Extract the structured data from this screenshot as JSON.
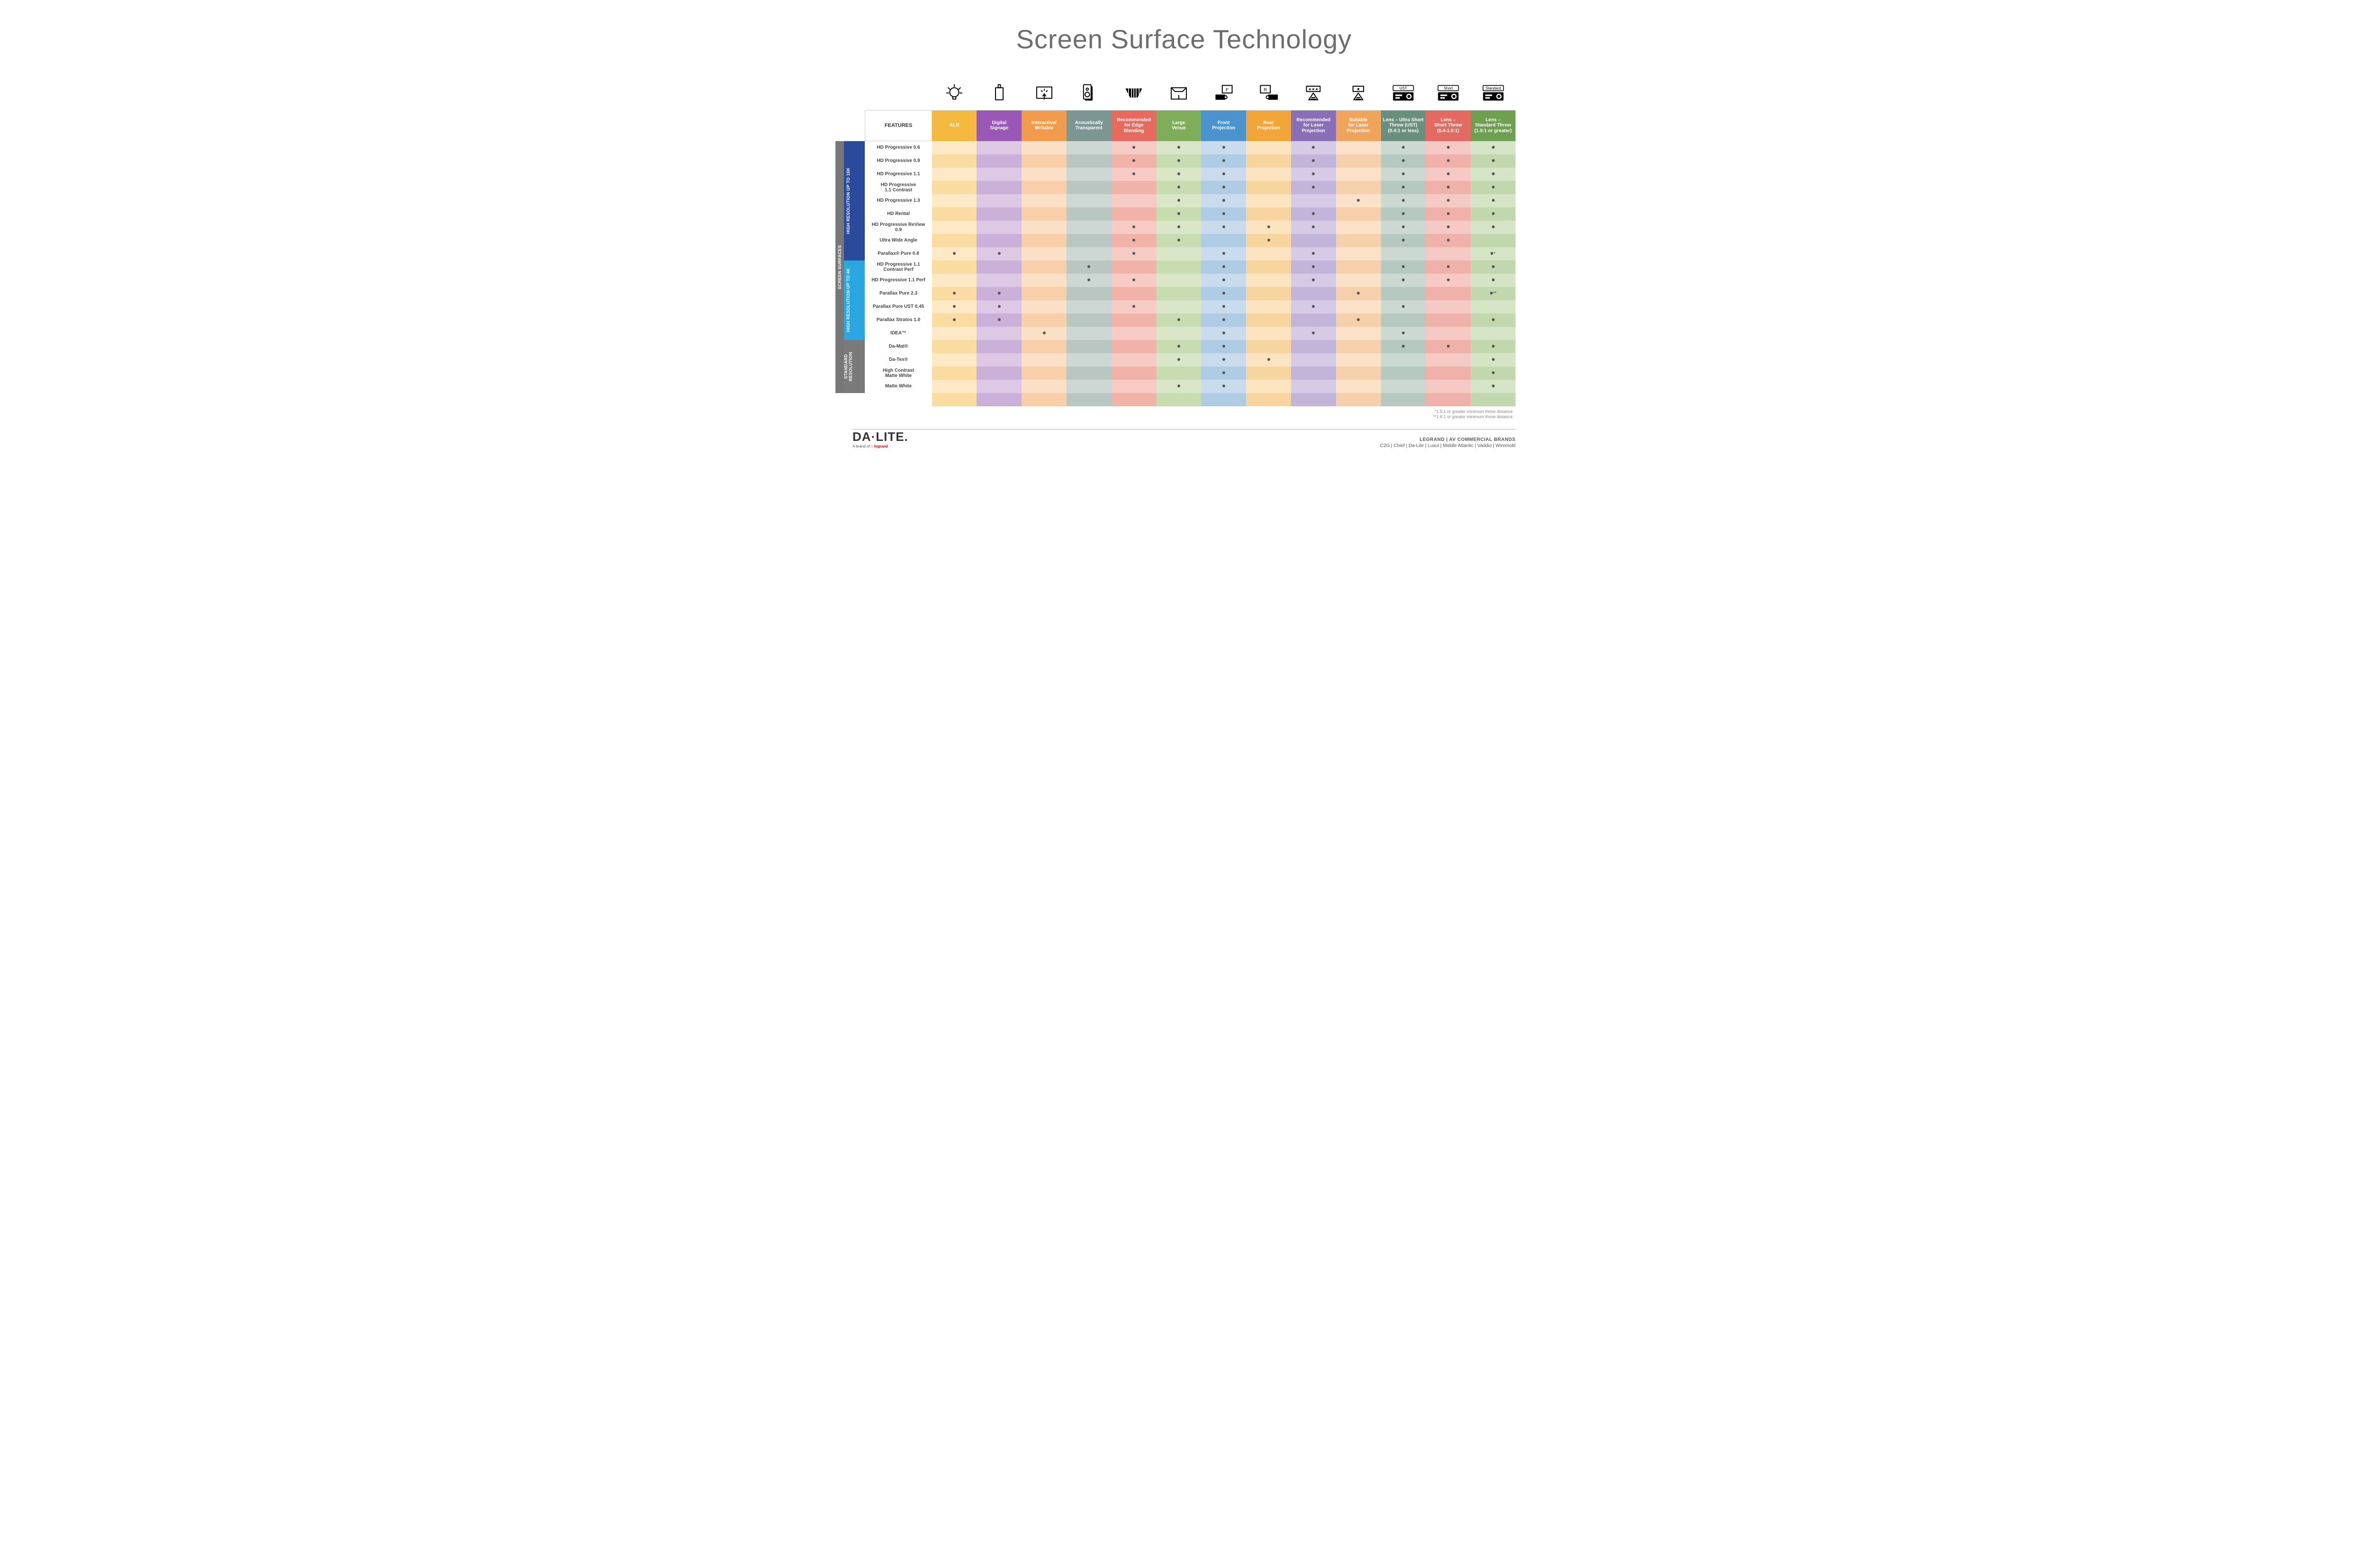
{
  "title": "Screen Surface Technology",
  "columns": [
    {
      "key": "alr",
      "label": "ALR",
      "bg": "#f6b940"
    },
    {
      "key": "ds",
      "label": "Digital\nSignage",
      "bg": "#9957b6"
    },
    {
      "key": "iw",
      "label": "Interactive/\nWritable",
      "bg": "#f29b4c"
    },
    {
      "key": "at",
      "label": "Acoustically\nTransparent",
      "bg": "#7c9791"
    },
    {
      "key": "eb",
      "label": "Recommended\nfor Edge\nBlending",
      "bg": "#e86a5e"
    },
    {
      "key": "lv",
      "label": "Large\nVenue",
      "bg": "#7eae5a"
    },
    {
      "key": "fp",
      "label": "Front\nProjection",
      "bg": "#4a93cf"
    },
    {
      "key": "rp",
      "label": "Rear\nProjection",
      "bg": "#f2a63a"
    },
    {
      "key": "rlp",
      "label": "Recommended\nfor Laser\nProjection",
      "bg": "#8a6fb8"
    },
    {
      "key": "slp",
      "label": "Suitable\nfor Laser\nProjection",
      "bg": "#f0a45a"
    },
    {
      "key": "ust",
      "label": "Lens – Ultra Short\nThrow (UST)\n(0.4:1 or less)",
      "bg": "#6b8f7e"
    },
    {
      "key": "st",
      "label": "Lens –\nShort Throw\n(0.4-1.0:1)",
      "bg": "#e36a60"
    },
    {
      "key": "std",
      "label": "Lens –\nStandard Throw\n(1.0:1 or greater)",
      "bg": "#6fa04f"
    }
  ],
  "tints": {
    "alr": [
      "#fde9c4",
      "#fbdca0"
    ],
    "ds": [
      "#ddc8e6",
      "#cbb0da"
    ],
    "iw": [
      "#fbe0c6",
      "#f8cfa8"
    ],
    "at": [
      "#cdd7d4",
      "#b9c7c3"
    ],
    "eb": [
      "#f6cbc4",
      "#f1b2a8"
    ],
    "lv": [
      "#d9e7c8",
      "#c7dcb1"
    ],
    "fp": [
      "#c8dcee",
      "#aecde5"
    ],
    "rp": [
      "#fbe4bf",
      "#f8d59f"
    ],
    "rlp": [
      "#d6cbe6",
      "#c3b4da"
    ],
    "slp": [
      "#fae1c8",
      "#f6d0aa"
    ],
    "ust": [
      "#ccd9d2",
      "#b6c9c0"
    ],
    "st": [
      "#f5cac5",
      "#f0b1aa"
    ],
    "std": [
      "#d4e4c5",
      "#c1d8ae"
    ]
  },
  "groups": [
    {
      "key": "g16k",
      "label": "HIGH RESOLUTION UP TO 16K",
      "bg": "#2a4a9b",
      "rows": [
        {
          "label": "HD Progressive 0.6",
          "dots": [
            "eb",
            "lv",
            "fp",
            "rlp",
            "ust",
            "st",
            "std"
          ]
        },
        {
          "label": "HD Progressive 0.9",
          "dots": [
            "eb",
            "lv",
            "fp",
            "rlp",
            "ust",
            "st",
            "std"
          ]
        },
        {
          "label": "HD Progressive 1.1",
          "dots": [
            "eb",
            "lv",
            "fp",
            "rlp",
            "ust",
            "st",
            "std"
          ]
        },
        {
          "label": "HD Progressive\n1.1 Contrast",
          "dots": [
            "lv",
            "fp",
            "rlp",
            "ust",
            "st",
            "std"
          ]
        },
        {
          "label": "HD Progressive 1.3",
          "dots": [
            "lv",
            "fp",
            "slp",
            "ust",
            "st",
            "std"
          ]
        },
        {
          "label": "HD Rental",
          "dots": [
            "lv",
            "fp",
            "rlp",
            "ust",
            "st",
            "std"
          ]
        },
        {
          "label": "HD Progressive ReView 0.9",
          "dots": [
            "eb",
            "lv",
            "fp",
            "rp",
            "rlp",
            "ust",
            "st",
            "std"
          ]
        },
        {
          "label": "Ultra Wide Angle",
          "dots": [
            "eb",
            "lv",
            "rp",
            "ust",
            "st"
          ]
        },
        {
          "label": "Parallax® Pure 0.8",
          "dots": [
            "alr",
            "ds",
            "eb",
            "fp",
            "rlp",
            "std"
          ],
          "suffix": "*"
        }
      ]
    },
    {
      "key": "g4k",
      "label": "HIGH RESOLUTION UP TO 4K",
      "bg": "#2aa7e1",
      "rows": [
        {
          "label": "HD Progressive 1.1\nContrast Perf",
          "dots": [
            "at",
            "fp",
            "rlp",
            "ust",
            "st",
            "std"
          ]
        },
        {
          "label": "HD Progressive 1.1 Perf",
          "dots": [
            "at",
            "eb",
            "fp",
            "rlp",
            "ust",
            "st",
            "std"
          ]
        },
        {
          "label": "Parallax Pure 2.3",
          "dots": [
            "alr",
            "ds",
            "fp",
            "slp",
            "std"
          ],
          "suffix": "**"
        },
        {
          "label": "Parallax Pure UST 0.45",
          "dots": [
            "alr",
            "ds",
            "eb",
            "fp",
            "rlp",
            "ust"
          ]
        },
        {
          "label": "Parallax Stratos 1.0",
          "dots": [
            "alr",
            "ds",
            "lv",
            "fp",
            "slp",
            "std"
          ]
        },
        {
          "label": "IDEA™",
          "dots": [
            "iw",
            "fp",
            "rlp",
            "ust"
          ]
        }
      ]
    },
    {
      "key": "gstd",
      "label": "STANDARD\nRESOLUTION",
      "bg": "#7a7a7a",
      "rows": [
        {
          "label": "Da-Mat®",
          "dots": [
            "lv",
            "fp",
            "ust",
            "st",
            "std"
          ]
        },
        {
          "label": "Da-Tex®",
          "dots": [
            "lv",
            "fp",
            "rp",
            "std"
          ]
        },
        {
          "label": "High Contrast\nMatte White",
          "dots": [
            "fp",
            "std"
          ]
        },
        {
          "label": "Matte White",
          "dots": [
            "lv",
            "fp",
            "std"
          ]
        }
      ]
    }
  ],
  "features_label": "FEATURES",
  "outer_label": "SCREEN SURFACES",
  "footnotes": [
    "*1.5:1 or greater minimum throw distance",
    "**1.8:1 or greater minimum throw distance"
  ],
  "footer": {
    "logo_main": "DA·LITE.",
    "logo_sub_prefix": "A brand of ",
    "logo_sub_brand": "legrand",
    "brands_title": "LEGRAND | AV COMMERCIAL BRANDS",
    "brands_list": "C2G  |  Chief  |  Da-Lite  |  Luxul  |  Middle Atlantic  |  Vaddio  |  Wiremold"
  },
  "icons": {
    "alr": "bulb",
    "ds": "signage",
    "iw": "touch",
    "at": "speaker",
    "eb": "blend",
    "lv": "venue",
    "fp": "front",
    "rp": "rear",
    "rlp": "laser3",
    "slp": "laser1",
    "ust": "proj_ust",
    "st": "proj_short",
    "std": "proj_std"
  }
}
